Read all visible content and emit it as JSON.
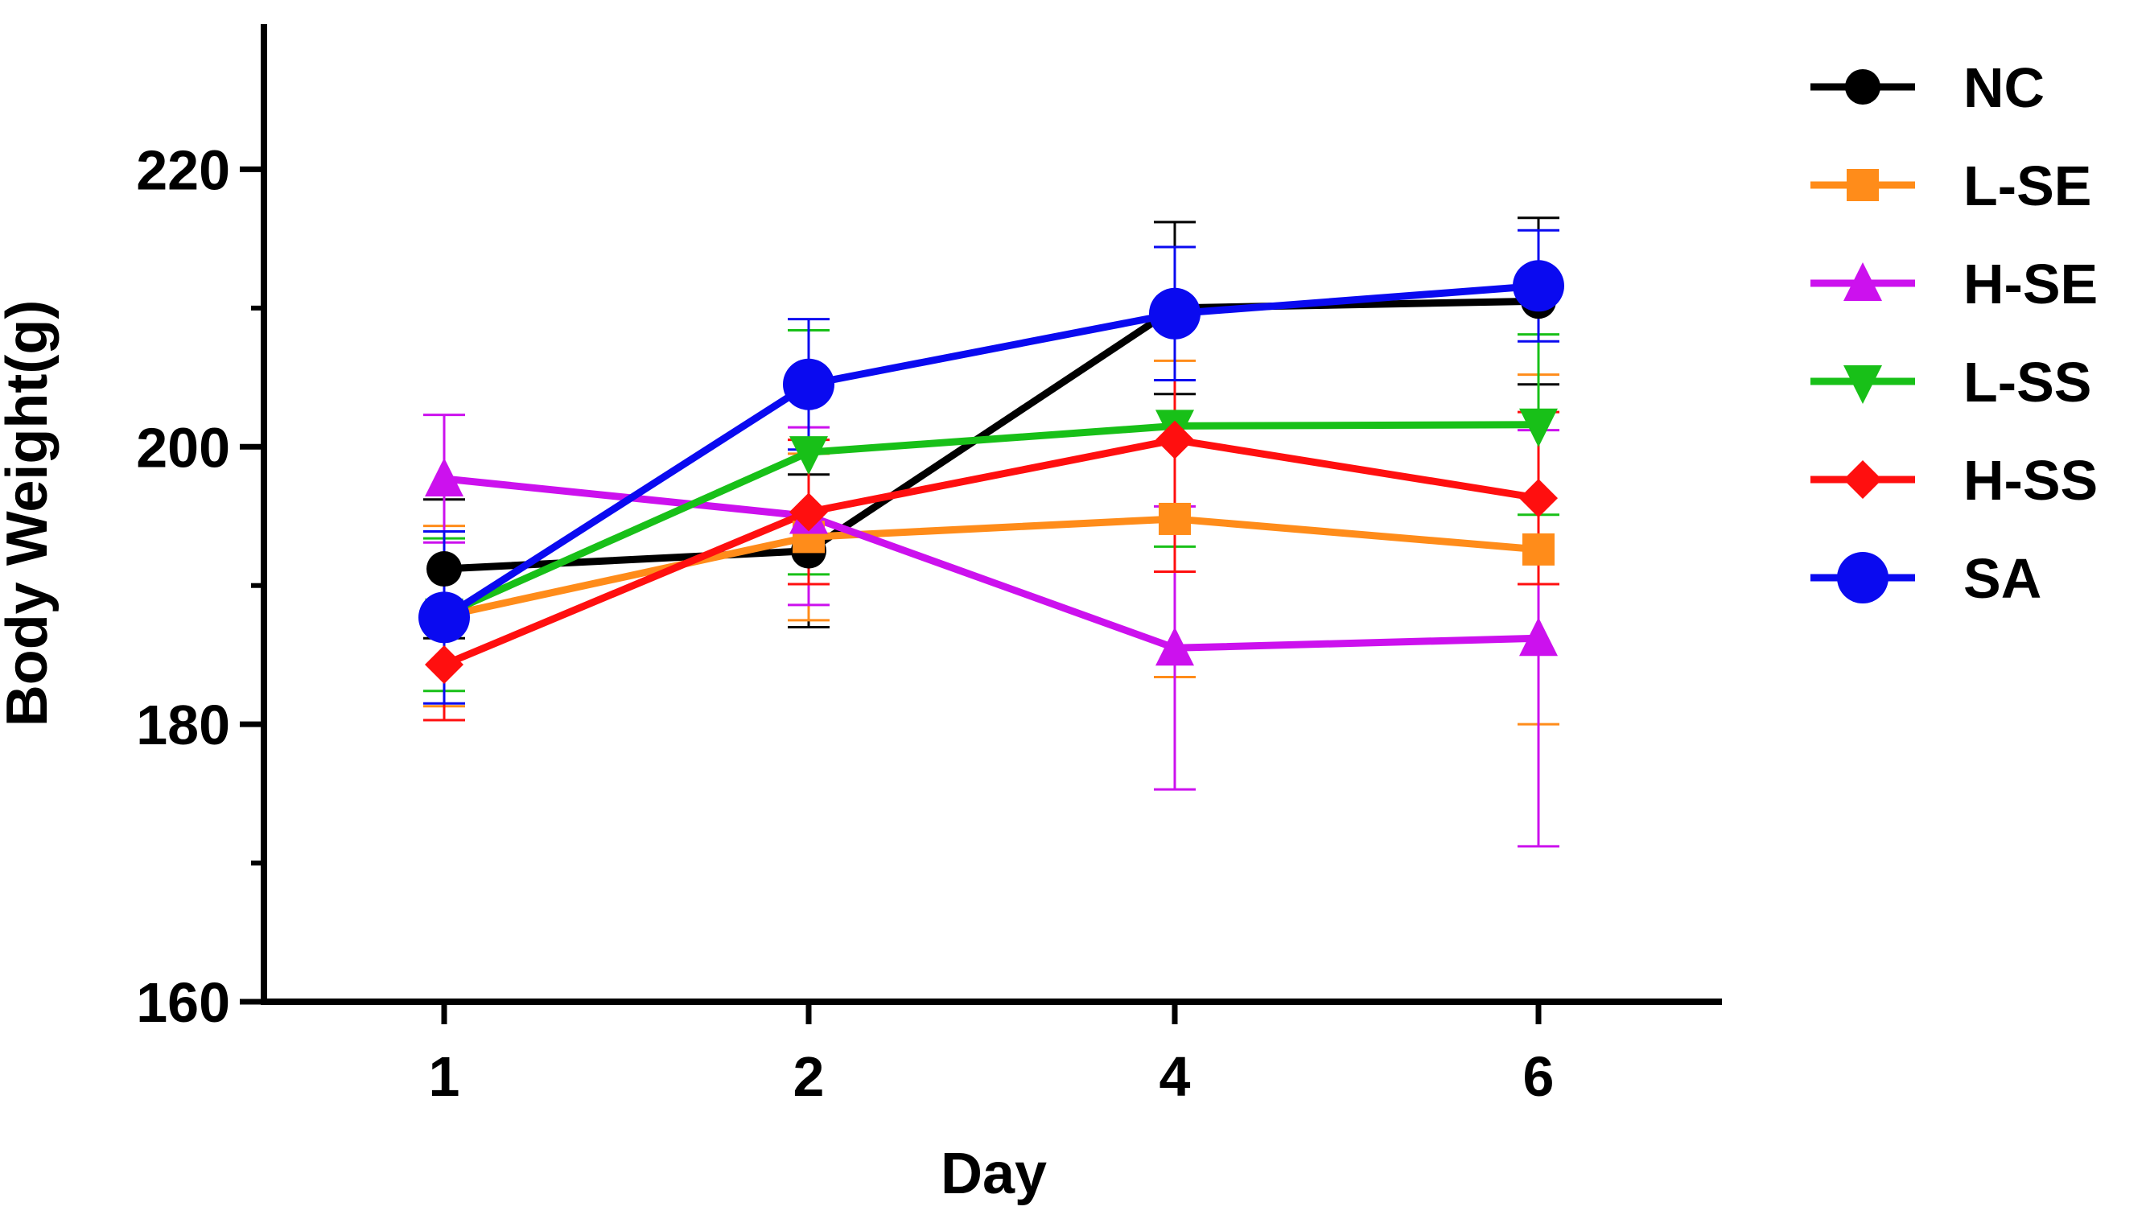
{
  "chart_data": {
    "type": "line",
    "title": "",
    "xlabel": "Day",
    "ylabel": "Body Weight(g)",
    "categories": [
      "1",
      "2",
      "4",
      "6"
    ],
    "ylim": [
      160,
      230
    ],
    "yticks": [
      160,
      180,
      200,
      220
    ],
    "grid": false,
    "legend_position": "right",
    "series": [
      {
        "name": "NC",
        "color": "#000000",
        "marker": "circle",
        "values": [
          191.2,
          192.5,
          210.0,
          210.5
        ],
        "errors": [
          5.0,
          5.5,
          6.2,
          6.0
        ]
      },
      {
        "name": "L-SE",
        "color": "#ff8c1a",
        "marker": "square",
        "values": [
          187.8,
          193.5,
          194.8,
          192.6
        ],
        "errors": [
          6.5,
          6.0,
          11.4,
          12.6
        ]
      },
      {
        "name": "H-SE",
        "color": "#cc11ee",
        "marker": "triangle-up",
        "values": [
          197.7,
          195.0,
          185.5,
          186.2
        ],
        "errors": [
          4.6,
          6.4,
          10.2,
          15.0
        ]
      },
      {
        "name": "L-SS",
        "color": "#18c018",
        "marker": "triangle-down",
        "values": [
          187.9,
          199.6,
          201.5,
          201.6
        ],
        "errors": [
          5.5,
          8.8,
          8.7,
          6.5
        ]
      },
      {
        "name": "H-SS",
        "color": "#ff0f0f",
        "marker": "diamond",
        "values": [
          184.3,
          195.3,
          200.5,
          196.3
        ],
        "errors": [
          4.0,
          5.2,
          9.5,
          6.2
        ]
      },
      {
        "name": "SA",
        "color": "#0a0af0",
        "marker": "circle-large",
        "values": [
          187.7,
          204.5,
          209.6,
          211.6
        ],
        "errors": [
          6.2,
          4.7,
          4.8,
          4.0
        ]
      }
    ]
  }
}
